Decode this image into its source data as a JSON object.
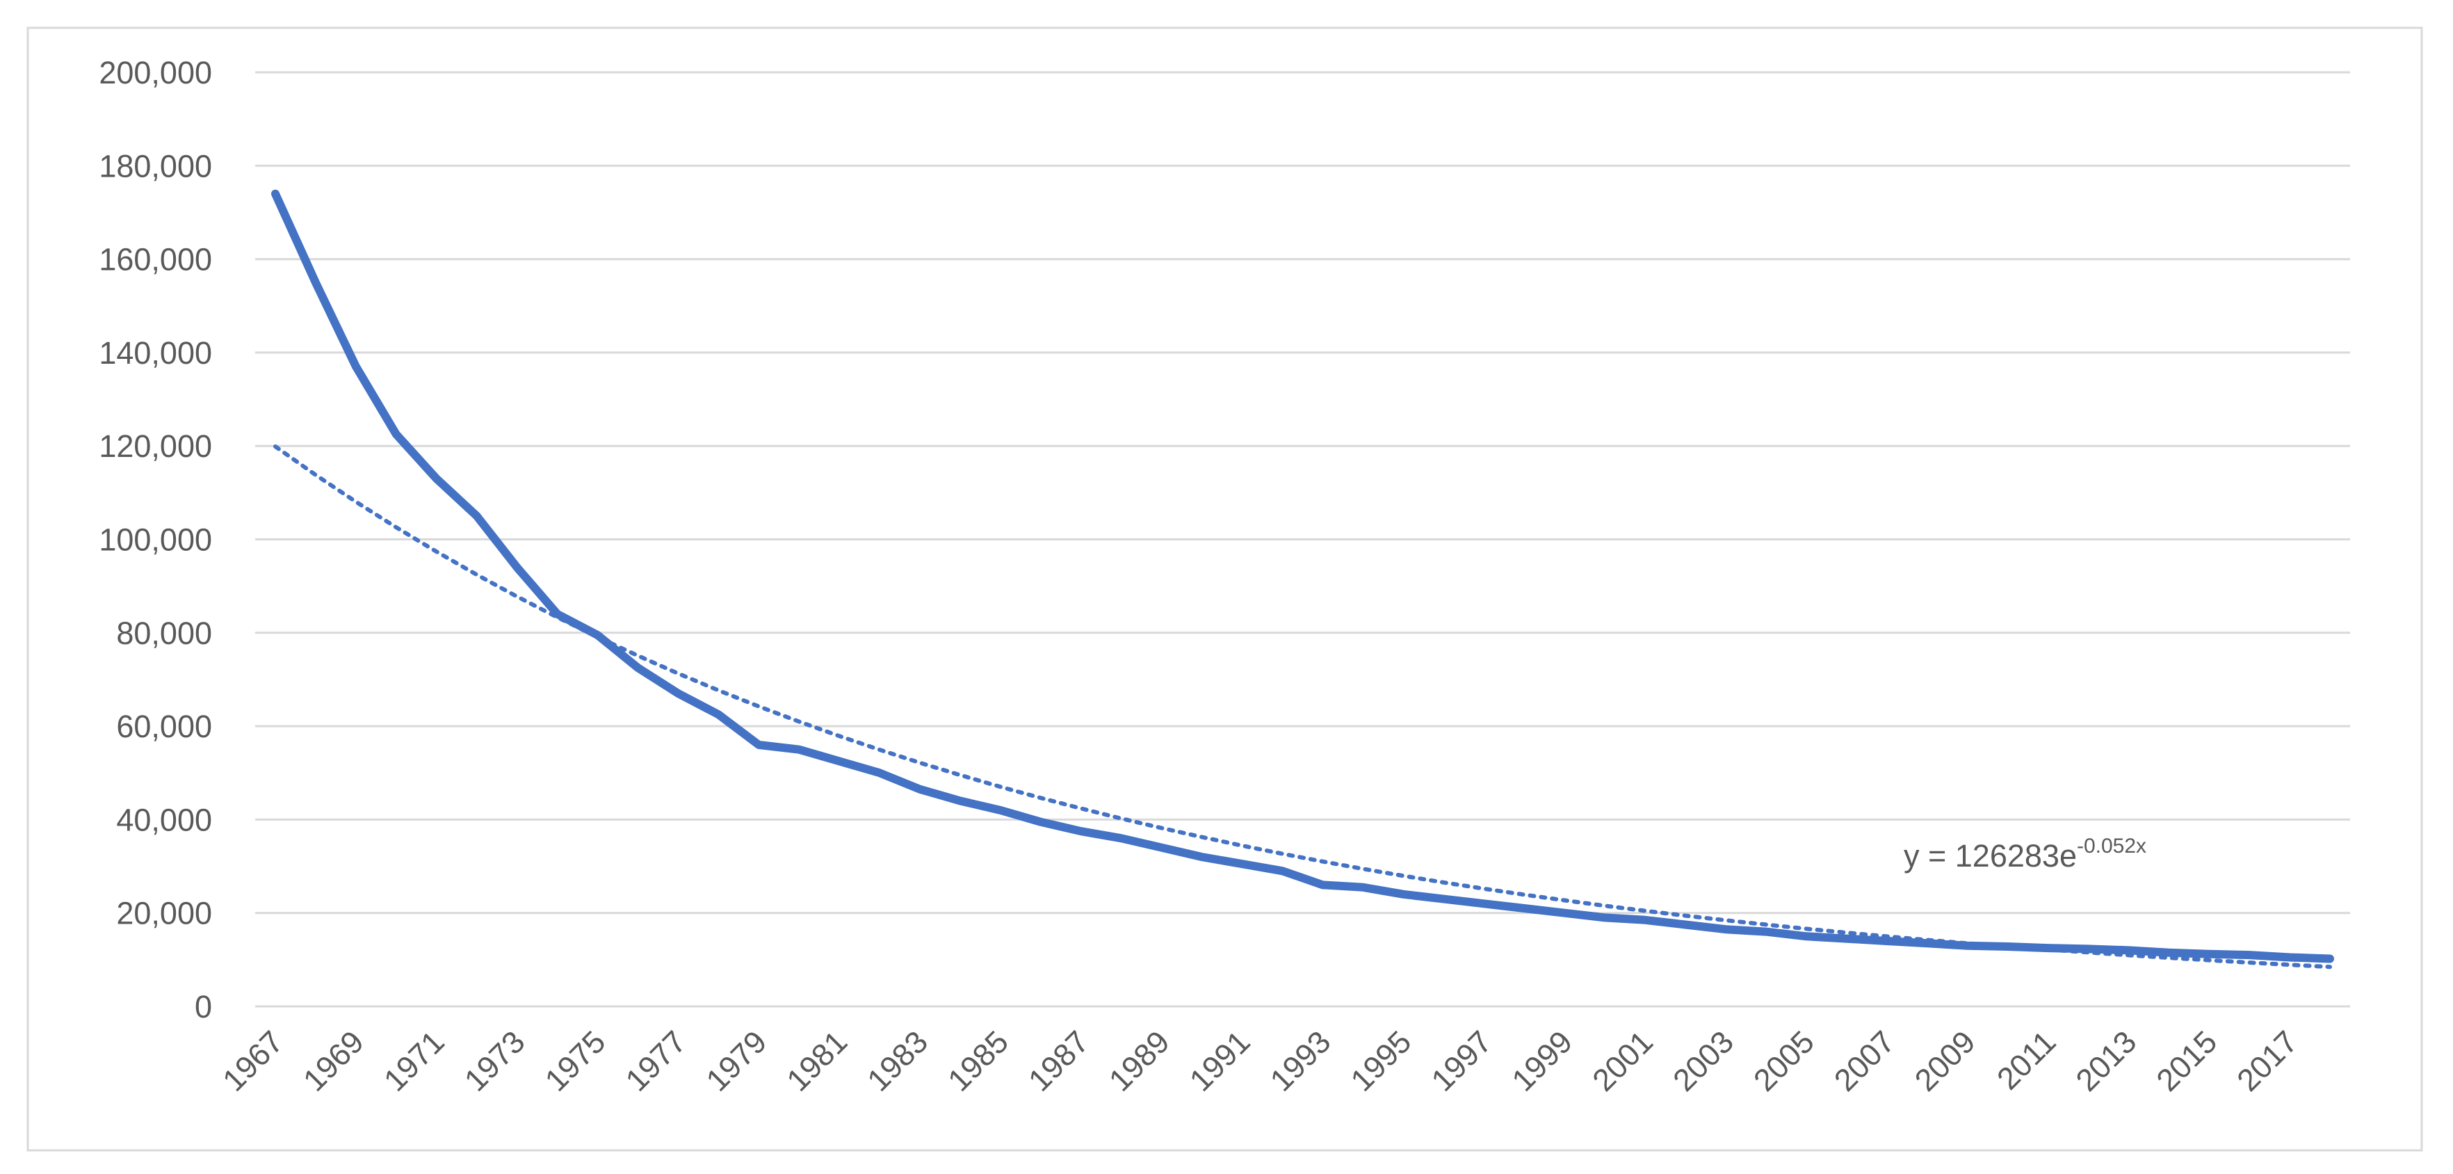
{
  "chart_data": {
    "type": "line",
    "categories": [
      "1967",
      null,
      "1969",
      null,
      "1971",
      null,
      "1973",
      null,
      "1975",
      null,
      "1977",
      null,
      "1979",
      null,
      "1981",
      null,
      "1983",
      null,
      "1985",
      null,
      "1987",
      null,
      "1989",
      null,
      "1991",
      null,
      "1993",
      null,
      "1995",
      null,
      "1997",
      null,
      "1999",
      null,
      "2001",
      null,
      "2003",
      null,
      "2005",
      null,
      "2007",
      null,
      "2009",
      null,
      "2011",
      null,
      "2013",
      null,
      "2015",
      null,
      "2017",
      null
    ],
    "values": [
      174000,
      155000,
      137000,
      122500,
      113000,
      105000,
      94000,
      84000,
      79500,
      72500,
      67000,
      62500,
      56000,
      55000,
      52500,
      50000,
      46500,
      44000,
      42000,
      39500,
      37500,
      36000,
      34000,
      32000,
      30500,
      29000,
      26000,
      25500,
      24000,
      23000,
      22000,
      21000,
      20000,
      19000,
      18500,
      17500,
      16500,
      16000,
      15000,
      14500,
      14000,
      13500,
      13000,
      12800,
      12500,
      12300,
      12000,
      11500,
      11200,
      11000,
      10500,
      10200
    ],
    "color": "#4472c4",
    "trendline": {
      "values": [
        119884,
        113810,
        108043,
        102569,
        97372,
        92438,
        87754,
        83308,
        79087,
        75079,
        71275,
        67664,
        64235,
        60981,
        57891,
        54958,
        52173,
        49530,
        47020,
        44638,
        42376,
        40229,
        38190,
        36255,
        34418,
        32674,
        31019,
        29447,
        27955,
        26539,
        25194,
        23918,
        22706,
        21555,
        20463,
        19426,
        18442,
        17508,
        16621,
        15779,
        14979,
        14220,
        13500,
        12816,
        12166,
        11550,
        10965,
        10409,
        9882,
        9381,
        8906,
        8455
      ],
      "color": "#4472c4",
      "style": "dotted"
    },
    "annotation": {
      "text": "y = 126283e",
      "superscript": "-0.052x"
    },
    "ylim": [
      0,
      200000
    ],
    "yticks": [
      0,
      {
        "value": 20000,
        "label": "20,000"
      },
      {
        "value": 40000,
        "label": "40,000"
      },
      {
        "value": 60000,
        "label": "60,000"
      },
      {
        "value": 80000,
        "label": "80,000"
      },
      {
        "value": 100000,
        "label": "100,000"
      },
      {
        "value": 120000,
        "label": "120,000"
      },
      {
        "value": 140000,
        "label": "140,000"
      },
      {
        "value": 160000,
        "label": "160,000"
      },
      {
        "value": 180000,
        "label": "180,000"
      },
      {
        "value": 200000,
        "label": "200,000"
      }
    ],
    "grid": true
  }
}
